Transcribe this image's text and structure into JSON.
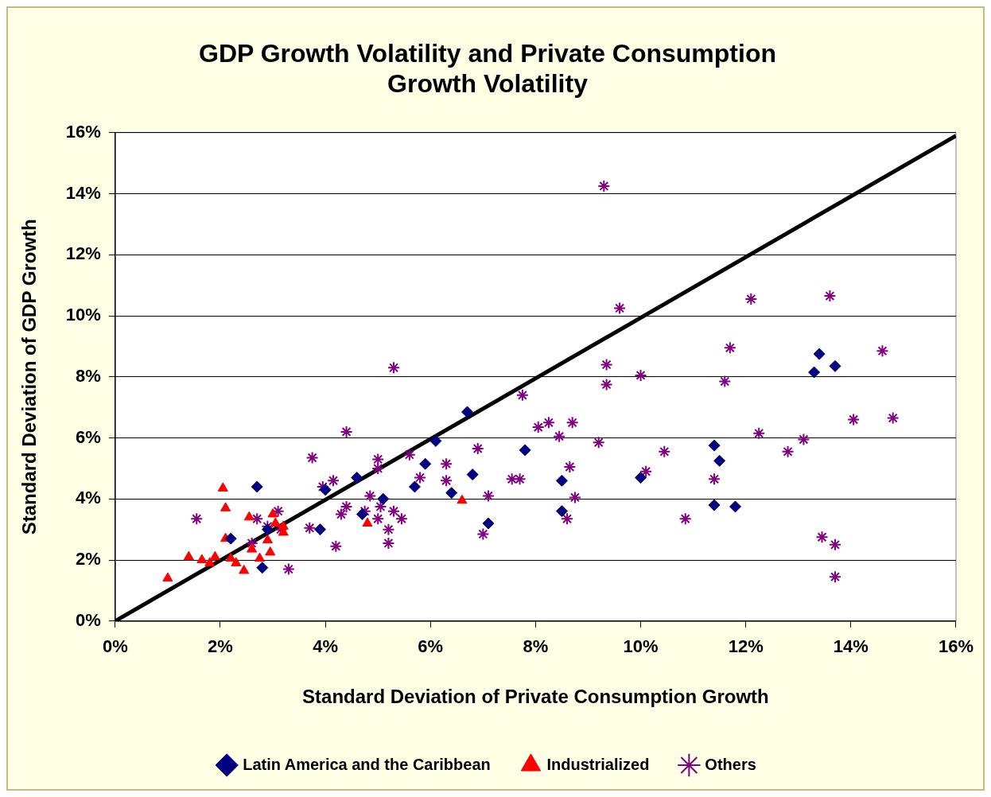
{
  "chart_data": {
    "type": "scatter",
    "title": "GDP Growth Volatility and Private Consumption Growth Volatility",
    "xlabel": "Standard Deviation of Private Consumption Growth",
    "ylabel": "Standard Deviation of GDP Growth",
    "xlim": [
      0,
      16
    ],
    "ylim": [
      0,
      16
    ],
    "xticks": [
      {
        "value": 0,
        "label": "0%"
      },
      {
        "value": 2,
        "label": "2%"
      },
      {
        "value": 4,
        "label": "4%"
      },
      {
        "value": 6,
        "label": "6%"
      },
      {
        "value": 8,
        "label": "8%"
      },
      {
        "value": 10,
        "label": "10%"
      },
      {
        "value": 12,
        "label": "12%"
      },
      {
        "value": 14,
        "label": "14%"
      },
      {
        "value": 16,
        "label": "16%"
      }
    ],
    "yticks": [
      {
        "value": 0,
        "label": "0%"
      },
      {
        "value": 2,
        "label": "2%"
      },
      {
        "value": 4,
        "label": "4%"
      },
      {
        "value": 6,
        "label": "6%"
      },
      {
        "value": 8,
        "label": "8%"
      },
      {
        "value": 10,
        "label": "10%"
      },
      {
        "value": 12,
        "label": "12%"
      },
      {
        "value": 14,
        "label": "14%"
      },
      {
        "value": 16,
        "label": "16%"
      }
    ],
    "grid": "y",
    "legend": "bottom",
    "series": [
      {
        "name": "Latin America and the Caribbean",
        "color": "#000080",
        "marker": "diamond",
        "x": [
          2.2,
          2.7,
          2.8,
          2.9,
          3.9,
          4.0,
          4.6,
          4.7,
          5.1,
          5.7,
          5.9,
          6.1,
          6.4,
          6.7,
          6.8,
          7.1,
          7.8,
          8.5,
          8.5,
          10.0,
          11.4,
          11.5,
          11.4,
          11.8,
          13.3,
          13.4,
          13.7
        ],
        "values": [
          2.7,
          4.4,
          1.75,
          3.0,
          3.0,
          4.3,
          4.7,
          3.5,
          4.0,
          4.4,
          5.15,
          5.9,
          4.2,
          6.85,
          4.8,
          3.2,
          5.6,
          4.6,
          3.6,
          4.7,
          5.75,
          5.25,
          3.8,
          3.75,
          8.15,
          8.75,
          8.35
        ]
      },
      {
        "name": "Industrialized",
        "color": "#ff0000",
        "marker": "triangle",
        "x": [
          1.0,
          1.4,
          1.65,
          1.8,
          1.9,
          2.05,
          2.1,
          2.1,
          2.2,
          2.3,
          2.45,
          2.55,
          2.6,
          2.75,
          2.9,
          2.95,
          3.0,
          3.05,
          3.2,
          3.2,
          4.8,
          6.6
        ],
        "values": [
          1.4,
          2.1,
          2.0,
          1.9,
          2.1,
          4.35,
          3.7,
          2.7,
          2.05,
          1.9,
          1.65,
          3.4,
          2.35,
          2.05,
          2.65,
          2.25,
          3.5,
          3.2,
          3.1,
          2.9,
          3.2,
          3.95
        ]
      },
      {
        "name": "Others",
        "color": "#800080",
        "marker": "cross",
        "x": [
          1.55,
          2.7,
          2.6,
          3.1,
          2.9,
          3.15,
          3.3,
          3.75,
          3.7,
          3.95,
          4.15,
          4.2,
          4.3,
          4.4,
          4.4,
          4.75,
          4.85,
          5.0,
          5.0,
          5.0,
          5.05,
          5.2,
          5.2,
          5.3,
          5.3,
          5.45,
          5.6,
          5.8,
          6.3,
          6.3,
          6.9,
          7.0,
          7.1,
          7.55,
          7.7,
          7.75,
          8.05,
          8.25,
          8.45,
          8.6,
          8.65,
          8.7,
          8.75,
          9.2,
          9.3,
          9.35,
          9.35,
          9.6,
          10.0,
          10.1,
          10.45,
          10.85,
          11.4,
          11.6,
          11.7,
          12.1,
          12.25,
          12.8,
          13.1,
          13.45,
          13.6,
          13.7,
          13.7,
          14.05,
          14.6,
          14.8
        ],
        "values": [
          3.35,
          3.35,
          2.55,
          3.6,
          3.1,
          3.0,
          1.7,
          5.35,
          3.05,
          4.4,
          4.6,
          2.45,
          3.5,
          3.75,
          6.2,
          3.6,
          4.1,
          5.3,
          5.0,
          3.35,
          3.75,
          3.0,
          2.55,
          3.6,
          8.3,
          3.35,
          5.45,
          4.7,
          5.15,
          4.6,
          5.65,
          2.85,
          4.1,
          4.65,
          4.65,
          7.4,
          6.35,
          6.5,
          6.05,
          3.35,
          5.05,
          6.5,
          4.05,
          5.85,
          14.25,
          7.75,
          8.4,
          10.25,
          8.05,
          4.9,
          5.55,
          3.35,
          4.65,
          7.85,
          8.95,
          10.55,
          6.15,
          5.55,
          5.95,
          2.75,
          10.65,
          1.45,
          2.5,
          6.6,
          8.85,
          6.65
        ]
      },
      {
        "type": "line",
        "color": "#000000",
        "x": [
          0,
          16
        ],
        "values": [
          0,
          15.9
        ]
      }
    ]
  }
}
